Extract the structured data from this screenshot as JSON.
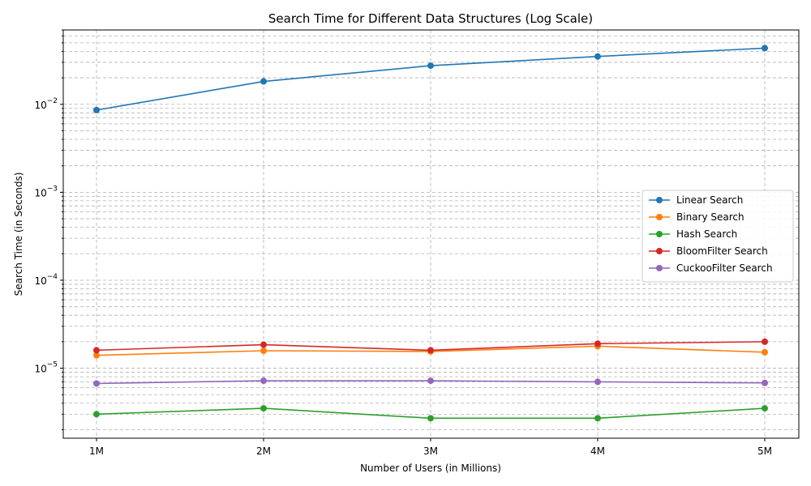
{
  "chart_data": {
    "type": "line",
    "title": "Search Time for Different Data Structures (Log Scale)",
    "xlabel": "Number of Users (in Millions)",
    "ylabel": "Search Time (in Seconds)",
    "categories": [
      "1M",
      "2M",
      "3M",
      "4M",
      "5M"
    ],
    "yscale": "log",
    "ylim": [
      1.6e-06,
      0.07
    ],
    "y_tick_values": [
      1e-05,
      0.0001,
      0.001,
      0.01
    ],
    "y_tick_base": "10",
    "y_tick_exponents": [
      "−5",
      "−4",
      "−3",
      "−2"
    ],
    "grid": true,
    "legend_position": "center-right",
    "series": [
      {
        "name": "Linear Search",
        "color": "#1f77b4",
        "values": [
          0.0086,
          0.0182,
          0.0275,
          0.035,
          0.0435
        ]
      },
      {
        "name": "Binary Search",
        "color": "#ff7f0e",
        "values": [
          1.4e-05,
          1.58e-05,
          1.55e-05,
          1.78e-05,
          1.52e-05
        ]
      },
      {
        "name": "Hash Search",
        "color": "#2ca02c",
        "values": [
          3e-06,
          3.5e-06,
          2.7e-06,
          2.7e-06,
          3.5e-06
        ]
      },
      {
        "name": "BloomFilter Search",
        "color": "#d62728",
        "values": [
          1.6e-05,
          1.85e-05,
          1.6e-05,
          1.9e-05,
          2e-05
        ]
      },
      {
        "name": "CuckooFilter Search",
        "color": "#9467bd",
        "values": [
          6.7e-06,
          7.2e-06,
          7.2e-06,
          7e-06,
          6.8e-06
        ]
      }
    ]
  }
}
